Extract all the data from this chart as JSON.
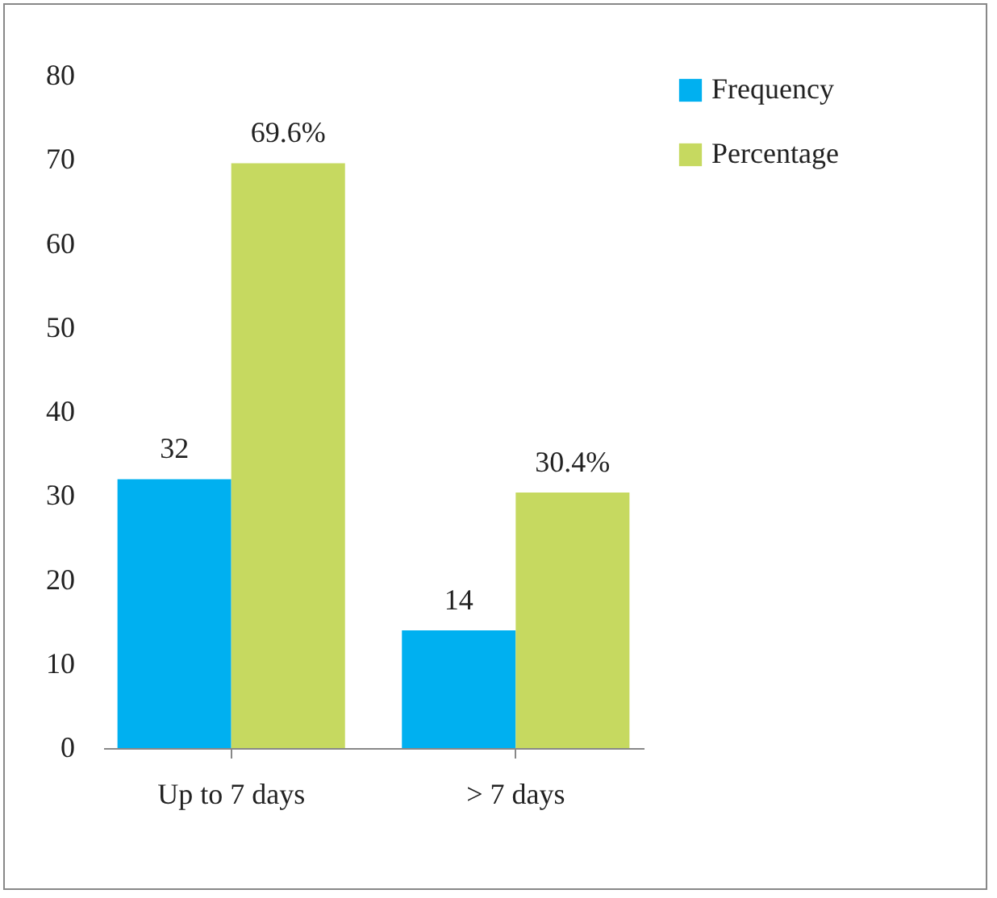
{
  "chart_data": {
    "type": "bar",
    "categories": [
      "Up to 7 days",
      "> 7 days"
    ],
    "series": [
      {
        "name": "Frequency",
        "color": "#00b0f0",
        "values": [
          32,
          14
        ],
        "value_labels": [
          "32",
          "14"
        ]
      },
      {
        "name": "Percentage",
        "color": "#c6d960",
        "values": [
          69.6,
          30.4
        ],
        "value_labels": [
          "69.6%",
          "30.4%"
        ]
      }
    ],
    "ylim": [
      0,
      80
    ],
    "yticks": [
      0,
      10,
      20,
      30,
      40,
      50,
      60,
      70,
      80
    ],
    "legend": "right"
  }
}
